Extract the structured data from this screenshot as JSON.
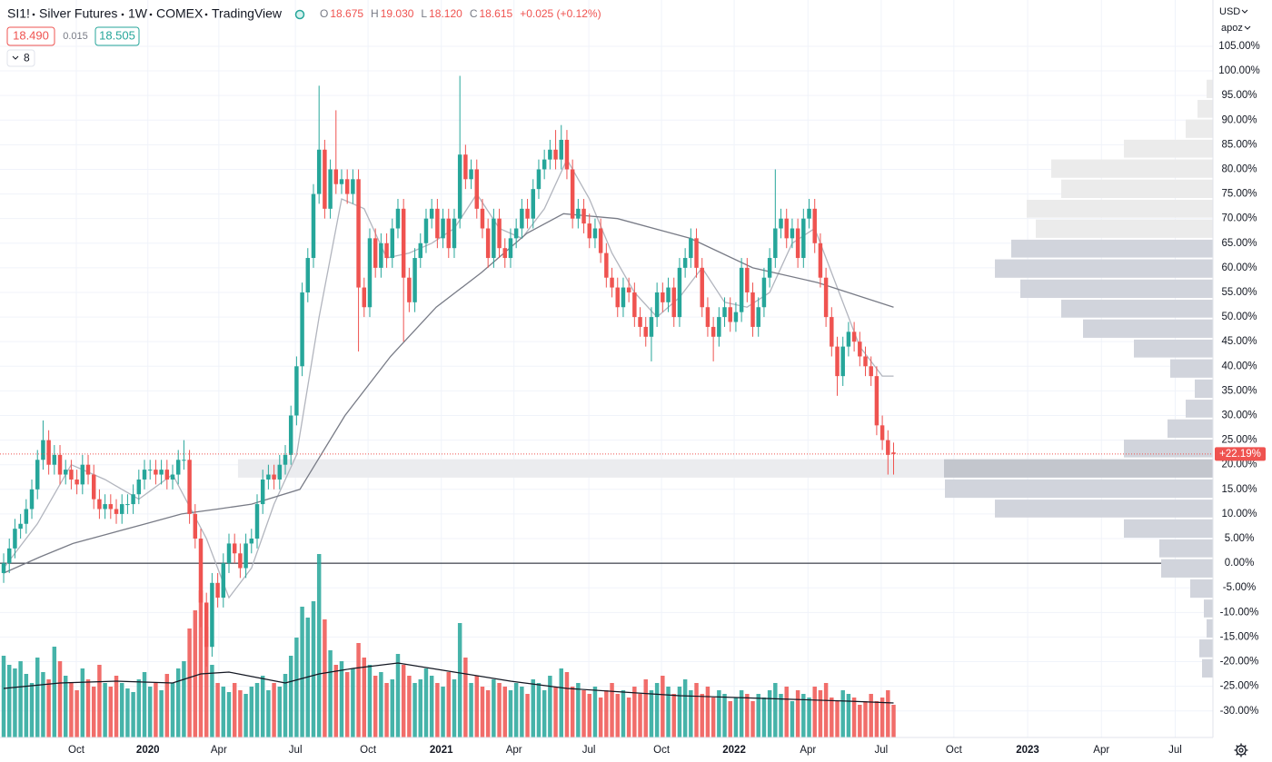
{
  "header": {
    "symbol": "SI1!",
    "name": "Silver Futures",
    "interval": "1W",
    "exchange": "COMEX",
    "source": "TradingView",
    "ohlc": [
      [
        "O",
        "18.675"
      ],
      [
        "H",
        "19.030"
      ],
      [
        "L",
        "18.120"
      ],
      [
        "C",
        "18.615"
      ]
    ],
    "change": "+0.025 (+0.12%)",
    "bid": "18.490",
    "spread": "0.015",
    "ask": "18.505",
    "indicator_count": "8"
  },
  "scale": {
    "currency": "USD",
    "mode": "apoz"
  },
  "chart_data": {
    "type": "candlestick",
    "up_color": "#26a69a",
    "down_color": "#ef5350",
    "open": [
      -2,
      0,
      3,
      7,
      8,
      11,
      15,
      21,
      25,
      20,
      22,
      18,
      19,
      17,
      16,
      20,
      18,
      13,
      11,
      12,
      11,
      10,
      12,
      12,
      14,
      17,
      19,
      19,
      18,
      19,
      17,
      18,
      21,
      21,
      10,
      5,
      -8,
      -17,
      -4,
      -7,
      0,
      4,
      2,
      -1,
      4,
      5,
      12,
      17,
      18,
      17,
      20,
      22,
      30,
      40,
      55,
      62,
      75,
      84,
      72,
      80,
      77,
      78,
      75,
      78,
      56,
      52,
      66,
      60,
      65,
      62,
      68,
      72,
      58,
      53,
      62,
      65,
      70,
      72,
      66,
      70,
      64,
      70,
      83,
      78,
      80,
      72,
      68,
      62,
      70,
      64,
      62,
      66,
      68,
      72,
      70,
      76,
      80,
      82,
      84,
      82,
      86,
      80,
      70,
      72,
      69,
      66,
      68,
      63,
      58,
      56,
      52,
      56,
      55,
      50,
      48,
      46,
      50,
      55,
      53,
      56,
      50,
      60,
      62,
      66,
      60,
      52,
      48,
      46,
      50,
      52,
      49,
      51,
      60,
      55,
      48,
      52,
      58,
      62,
      68,
      70,
      66,
      68,
      62,
      70,
      72,
      65,
      58,
      50,
      44,
      38,
      44,
      47,
      45,
      42,
      40,
      38,
      28,
      25,
      22.5
    ],
    "high": [
      2,
      5,
      9,
      10,
      13,
      17,
      23,
      29,
      27,
      24,
      24,
      21,
      21,
      19,
      22,
      22,
      20,
      15,
      14,
      14,
      13,
      14,
      14,
      16,
      19,
      21,
      21,
      21,
      21,
      21,
      20,
      23,
      25,
      23,
      12,
      7,
      -6,
      -2,
      -2,
      2,
      6,
      6,
      4,
      6,
      7,
      14,
      19,
      20,
      20,
      22,
      24,
      32,
      42,
      57,
      64,
      77,
      97,
      86,
      82,
      92,
      80,
      80,
      80,
      80,
      58,
      68,
      68,
      67,
      67,
      70,
      74,
      74,
      60,
      64,
      67,
      72,
      74,
      74,
      72,
      72,
      72,
      99,
      85,
      82,
      82,
      74,
      70,
      72,
      72,
      66,
      68,
      70,
      74,
      74,
      78,
      82,
      84,
      86,
      88,
      89,
      88,
      82,
      74,
      74,
      71,
      70,
      70,
      65,
      60,
      58,
      58,
      58,
      57,
      52,
      50,
      52,
      57,
      57,
      58,
      58,
      62,
      64,
      68,
      68,
      62,
      54,
      50,
      52,
      54,
      54,
      53,
      62,
      62,
      57,
      54,
      60,
      64,
      80,
      72,
      72,
      70,
      70,
      72,
      74,
      74,
      67,
      60,
      52,
      46,
      46,
      49,
      49,
      47,
      44,
      42,
      40,
      30,
      27,
      24.5
    ],
    "low": [
      -4,
      -2,
      1,
      5,
      6,
      9,
      13,
      19,
      18,
      18,
      16,
      16,
      15,
      14,
      14,
      16,
      11,
      9,
      9,
      9,
      8,
      8,
      10,
      10,
      12,
      15,
      17,
      16,
      16,
      15,
      15,
      16,
      19,
      8,
      3,
      -13,
      -21,
      -19,
      -9,
      -9,
      -2,
      0,
      -3,
      -3,
      2,
      3,
      10,
      15,
      15,
      15,
      18,
      20,
      28,
      38,
      53,
      60,
      73,
      70,
      70,
      75,
      75,
      73,
      73,
      43,
      50,
      50,
      58,
      58,
      60,
      60,
      66,
      45,
      51,
      51,
      60,
      63,
      68,
      64,
      64,
      62,
      62,
      68,
      76,
      76,
      70,
      66,
      60,
      60,
      62,
      60,
      60,
      64,
      66,
      68,
      68,
      74,
      78,
      80,
      80,
      80,
      78,
      68,
      68,
      67,
      64,
      64,
      61,
      56,
      54,
      50,
      50,
      53,
      48,
      46,
      44,
      41,
      48,
      51,
      51,
      48,
      48,
      58,
      60,
      58,
      50,
      46,
      41,
      44,
      48,
      47,
      47,
      49,
      53,
      46,
      46,
      50,
      56,
      60,
      66,
      64,
      64,
      60,
      60,
      68,
      63,
      56,
      48,
      42,
      34,
      36,
      42,
      43,
      40,
      38,
      36,
      26,
      23,
      18,
      18
    ],
    "close": [
      0,
      3,
      7,
      8,
      11,
      15,
      21,
      25,
      20,
      22,
      18,
      19,
      17,
      16,
      20,
      18,
      13,
      11,
      12,
      11,
      10,
      12,
      12,
      14,
      17,
      19,
      19,
      18,
      19,
      17,
      18,
      21,
      21,
      10,
      5,
      -8,
      -17,
      -4,
      -7,
      0,
      4,
      2,
      -1,
      4,
      5,
      12,
      17,
      18,
      17,
      20,
      22,
      30,
      40,
      55,
      62,
      75,
      84,
      72,
      80,
      77,
      78,
      75,
      78,
      56,
      52,
      66,
      60,
      65,
      62,
      68,
      72,
      58,
      53,
      62,
      65,
      70,
      72,
      66,
      70,
      64,
      70,
      83,
      78,
      80,
      72,
      68,
      62,
      70,
      64,
      62,
      66,
      68,
      72,
      70,
      76,
      80,
      82,
      84,
      82,
      86,
      80,
      70,
      72,
      69,
      66,
      68,
      63,
      58,
      56,
      52,
      56,
      55,
      50,
      48,
      46,
      50,
      55,
      53,
      56,
      50,
      60,
      62,
      66,
      60,
      52,
      48,
      46,
      50,
      52,
      49,
      51,
      60,
      55,
      48,
      52,
      58,
      62,
      68,
      70,
      66,
      68,
      62,
      70,
      72,
      65,
      58,
      50,
      44,
      38,
      44,
      47,
      45,
      42,
      40,
      38,
      28,
      25,
      22,
      22.19
    ],
    "last_price_label": "+22.19%",
    "volume": {
      "vlim": [
        0,
        105
      ],
      "values": [
        45,
        40,
        38,
        42,
        35,
        30,
        44,
        36,
        32,
        50,
        42,
        34,
        30,
        26,
        38,
        32,
        28,
        40,
        30,
        28,
        34,
        30,
        27,
        25,
        32,
        36,
        28,
        30,
        26,
        35,
        30,
        38,
        42,
        60,
        70,
        81,
        61,
        40,
        30,
        28,
        25,
        30,
        26,
        24,
        28,
        30,
        34,
        26,
        30,
        28,
        35,
        45,
        55,
        72,
        66,
        75,
        101,
        65,
        48,
        40,
        42,
        36,
        38,
        52,
        44,
        40,
        34,
        36,
        30,
        32,
        46,
        40,
        34,
        30,
        32,
        38,
        34,
        30,
        28,
        36,
        32,
        63,
        44,
        30,
        34,
        28,
        26,
        32,
        30,
        28,
        26,
        30,
        28,
        24,
        32,
        30,
        26,
        34,
        28,
        38,
        36,
        28,
        30,
        26,
        24,
        28,
        22,
        26,
        30,
        24,
        26,
        22,
        28,
        24,
        32,
        26,
        30,
        34,
        28,
        24,
        28,
        32,
        26,
        30,
        24,
        28,
        22,
        26,
        24,
        20,
        22,
        26,
        24,
        20,
        24,
        22,
        26,
        30,
        24,
        28,
        20,
        26,
        24,
        22,
        28,
        26,
        30,
        22,
        20,
        26,
        24,
        22,
        18,
        20,
        24,
        20,
        22,
        26,
        18
      ],
      "ma": {
        "color": "#131722",
        "x": [
          0,
          10,
          20,
          30,
          35,
          40,
          45,
          50,
          56,
          62,
          70,
          80,
          90,
          100,
          110,
          120,
          130,
          140,
          150,
          158
        ],
        "values": [
          27,
          30,
          31,
          30,
          35,
          36,
          33,
          30,
          35,
          38,
          41,
          36,
          31,
          27,
          25,
          23,
          22,
          21,
          20,
          19
        ]
      }
    },
    "moving_averages": [
      {
        "color": "#b2b5be",
        "x": [
          0,
          6,
          12,
          18,
          24,
          30,
          36,
          40,
          44,
          48,
          52,
          56,
          60,
          64,
          68,
          72,
          76,
          80,
          84,
          88,
          92,
          96,
          100,
          104,
          108,
          112,
          116,
          120,
          124,
          128,
          132,
          136,
          140,
          144,
          148,
          152,
          156,
          158
        ],
        "values": [
          -1,
          8,
          20,
          17,
          13,
          18,
          5,
          -7,
          -1,
          12,
          22,
          50,
          74,
          72,
          62,
          63,
          65,
          68,
          75,
          68,
          66,
          72,
          82,
          74,
          63,
          55,
          50,
          54,
          60,
          53,
          52,
          55,
          65,
          68,
          56,
          44,
          38,
          38
        ]
      },
      {
        "color": "#787b86",
        "x": [
          0,
          6.5,
          12.3,
          18.7,
          25.2,
          31.6,
          38,
          44,
          52.6,
          60.6,
          68.7,
          76.8,
          84.8,
          92.9,
          99.4,
          109,
          121.9,
          133,
          144.5,
          158
        ],
        "values": [
          -2,
          1.3,
          4,
          6,
          8,
          10,
          11,
          12,
          15,
          30,
          42,
          52,
          59,
          67,
          71,
          70,
          66,
          60,
          57,
          52
        ]
      }
    ],
    "profile": {
      "from": 41.6,
      "plim": [
        0,
        300
      ],
      "band_color": "#ebecef",
      "bins": [
        -23.4,
        -19.3,
        -15.3,
        -11.2,
        -7.2,
        -3.1,
        1.0,
        5.0,
        9.1,
        13.1,
        17.2,
        21.3,
        25.3,
        29.4,
        33.4,
        37.5,
        41.6,
        45.6,
        49.7,
        53.7,
        57.8,
        61.9,
        65.9,
        70.0,
        74.0,
        78.1,
        82.2,
        86.2,
        90.3,
        94.3,
        98.4
      ],
      "values": [
        12,
        15,
        7,
        10,
        25,
        57,
        59,
        98,
        240,
        295,
        296,
        98,
        50,
        30,
        20,
        47,
        87,
        143,
        167,
        212,
        240,
        222,
        195,
        205,
        167,
        178,
        98,
        30,
        17,
        7
      ],
      "colors": [
        "#d1d4dc",
        "#d1d4dc",
        "#d1d4dc",
        "#d1d4dc",
        "#d1d4dc",
        "#d1d4dc",
        "#d1d4dc",
        "#d1d4dc",
        "#d1d4dc",
        "#d1d4dc",
        "#c3c6cd",
        "#d1d4dc",
        "#d1d4dc",
        "#d1d4dc",
        "#d1d4dc",
        "#d1d4dc",
        "#d1d4dc",
        "#d1d4dc",
        "#d1d4dc",
        "#d1d4dc",
        "#d1d4dc",
        "#d1d4dc",
        "#ebebeb",
        "#ebebeb",
        "#ebebeb",
        "#ebebeb",
        "#ebebeb",
        "#ebebeb",
        "#ebebeb",
        "#ebebeb"
      ]
    },
    "xlim": [
      -0.65,
      214.7
    ],
    "ylim": [
      -35.4,
      114.4
    ],
    "grid": true,
    "xticks": [
      {
        "value": 12.9,
        "label": "Oct"
      },
      {
        "value": 25.6,
        "label": "2020"
      },
      {
        "value": 38.2,
        "label": "Apr"
      },
      {
        "value": 51.8,
        "label": "Jul"
      },
      {
        "value": 64.7,
        "label": "Oct"
      },
      {
        "value": 77.7,
        "label": "2021"
      },
      {
        "value": 90.6,
        "label": "Apr"
      },
      {
        "value": 103.9,
        "label": "Jul"
      },
      {
        "value": 116.8,
        "label": "Oct"
      },
      {
        "value": 129.7,
        "label": "2022"
      },
      {
        "value": 142.8,
        "label": "Apr"
      },
      {
        "value": 155.8,
        "label": "Jul"
      },
      {
        "value": 168.7,
        "label": "Oct"
      },
      {
        "value": 181.8,
        "label": "2023"
      },
      {
        "value": 194.9,
        "label": "Apr"
      },
      {
        "value": 208,
        "label": "Jul"
      }
    ],
    "yticks": [
      {
        "value": -30,
        "label": "-30.00%"
      },
      {
        "value": -25,
        "label": "-25.00%"
      },
      {
        "value": -20,
        "label": "-20.00%"
      },
      {
        "value": -15,
        "label": "-15.00%"
      },
      {
        "value": -10,
        "label": "-10.00%"
      },
      {
        "value": -5,
        "label": "-5.00%"
      },
      {
        "value": 0,
        "label": "0.00%"
      },
      {
        "value": 5,
        "label": "5.00%"
      },
      {
        "value": 10,
        "label": "10.00%"
      },
      {
        "value": 15,
        "label": "15.00%"
      },
      {
        "value": 20,
        "label": "20.00%"
      },
      {
        "value": 25,
        "label": "25.00%"
      },
      {
        "value": 30,
        "label": "30.00%"
      },
      {
        "value": 35,
        "label": "35.00%"
      },
      {
        "value": 40,
        "label": "40.00%"
      },
      {
        "value": 45,
        "label": "45.00%"
      },
      {
        "value": 50,
        "label": "50.00%"
      },
      {
        "value": 55,
        "label": "55.00%"
      },
      {
        "value": 60,
        "label": "60.00%"
      },
      {
        "value": 65,
        "label": "65.00%"
      },
      {
        "value": 70,
        "label": "70.00%"
      },
      {
        "value": 75,
        "label": "75.00%"
      },
      {
        "value": 80,
        "label": "80.00%"
      },
      {
        "value": 85,
        "label": "85.00%"
      },
      {
        "value": 90,
        "label": "90.00%"
      },
      {
        "value": 95,
        "label": "95.00%"
      },
      {
        "value": 100,
        "label": "100.00%"
      },
      {
        "value": 105,
        "label": "105.00%"
      }
    ]
  }
}
